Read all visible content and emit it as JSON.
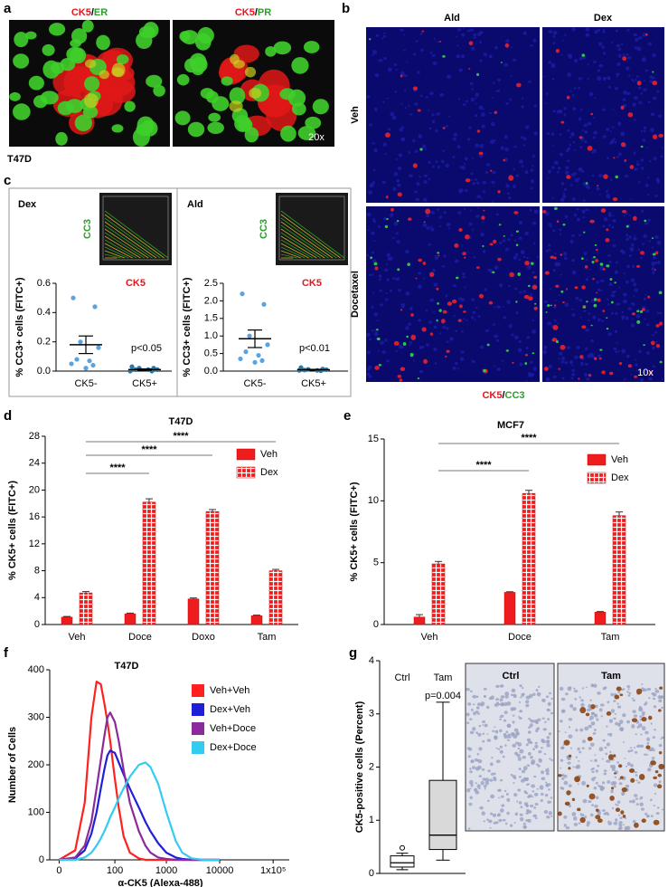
{
  "panel_letters": [
    "a",
    "b",
    "c",
    "d",
    "e",
    "f",
    "g"
  ],
  "panel_a": {
    "titles": [
      [
        "CK5",
        "/",
        "ER"
      ],
      [
        "CK5",
        "/",
        "PR"
      ]
    ],
    "magnification": "20x",
    "cell_line": "T47D"
  },
  "panel_b": {
    "columns": [
      "Ald",
      "Dex"
    ],
    "rows": [
      "Veh",
      "Docetaxel"
    ],
    "magnification": "10x",
    "stain": [
      "CK5",
      "/",
      "CC3"
    ]
  },
  "panel_g": {
    "image_labels": [
      "Ctrl",
      "Tam"
    ]
  },
  "chart_data": [
    {
      "type": "dot",
      "title": "Dex",
      "inset_xlabel": "CK5",
      "inset_ylabel": "CC3",
      "ylabel": "% CC3+ cells (FITC+)",
      "categories": [
        "CK5-",
        "CK5+"
      ],
      "colors": [
        "#5ba3e0",
        "#2a7aa8"
      ],
      "values": [
        [
          0.5,
          0.44,
          0.2,
          0.16,
          0.08,
          0.07,
          0.05,
          0.04,
          0.02
        ],
        [
          0.03,
          0.02,
          0.02,
          0.01,
          0.01,
          0.01,
          0.0,
          0.0
        ]
      ],
      "means": [
        0.18,
        0.01
      ],
      "errors": [
        0.06,
        0.005
      ],
      "ylim": [
        0,
        0.6
      ],
      "yticks": [
        {
          "value": 0,
          "label": "0.0"
        },
        0.2,
        0.4,
        0.6
      ],
      "annotation": "p<0.05"
    },
    {
      "type": "dot",
      "title": "Ald",
      "inset_xlabel": "CK5",
      "inset_ylabel": "CC3",
      "ylabel": "% CC3+ cells (FITC+)",
      "categories": [
        "CK5-",
        "CK5+"
      ],
      "colors": [
        "#5ba3e0",
        "#2a7aa8"
      ],
      "values": [
        [
          2.2,
          1.9,
          1.0,
          0.75,
          0.55,
          0.45,
          0.35,
          0.3,
          0.25
        ],
        [
          0.1,
          0.06,
          0.05,
          0.04,
          0.03,
          0.02,
          0.02,
          0.01
        ]
      ],
      "means": [
        0.92,
        0.04
      ],
      "errors": [
        0.25,
        0.01
      ],
      "ylim": [
        0,
        2.5
      ],
      "yticks": [
        {
          "value": 0,
          "label": "0.0"
        },
        0.5,
        {
          "value": 1,
          "label": "1.0"
        },
        1.5,
        {
          "value": 2,
          "label": "2.0"
        },
        2.5
      ],
      "annotation": "p<0.01"
    },
    {
      "type": "bar",
      "title": "T47D",
      "ylabel": "% CK5+ cells (FITC+)",
      "categories": [
        "Veh",
        "Doce",
        "Doxo",
        "Tam"
      ],
      "series": [
        {
          "name": "Veh",
          "color": "#ee1c1c",
          "pattern": "solid",
          "values": [
            1.1,
            1.6,
            3.8,
            1.3
          ],
          "errors": [
            0.1,
            0.1,
            0.15,
            0.1
          ]
        },
        {
          "name": "Dex",
          "color": "#ee1c1c",
          "pattern": "grid",
          "values": [
            4.7,
            18.2,
            16.8,
            8.0
          ],
          "errors": [
            0.2,
            0.5,
            0.3,
            0.2
          ]
        }
      ],
      "ylim": [
        0,
        28
      ],
      "yticks": [
        0,
        4,
        8,
        12,
        16,
        20,
        24,
        28
      ],
      "legend": "upper right",
      "significance": [
        "****",
        "****",
        "****"
      ]
    },
    {
      "type": "bar",
      "title": "MCF7",
      "ylabel": "% CK5+ cells (FITC+)",
      "categories": [
        "Veh",
        "Doce",
        "Tam"
      ],
      "series": [
        {
          "name": "Veh",
          "color": "#ee1c1c",
          "pattern": "solid",
          "values": [
            0.6,
            2.6,
            1.0
          ],
          "errors": [
            0.2,
            0.05,
            0.05
          ]
        },
        {
          "name": "Dex",
          "color": "#ee1c1c",
          "pattern": "grid",
          "values": [
            4.9,
            10.6,
            8.8
          ],
          "errors": [
            0.2,
            0.25,
            0.3
          ]
        }
      ],
      "ylim": [
        0,
        15
      ],
      "yticks": [
        0,
        5,
        10,
        15
      ],
      "legend": "upper right",
      "significance": [
        "****",
        "****"
      ]
    },
    {
      "type": "line",
      "title": "T47D",
      "xlabel": "α-CK5 (Alexa-488)",
      "ylabel": "Number of Cells",
      "xscale": "symlog",
      "linthresh": 10,
      "x": [
        0,
        10,
        20,
        30,
        40,
        50,
        60,
        70,
        80,
        100,
        120,
        150,
        200,
        300,
        400,
        500,
        700,
        1000,
        1500,
        2000,
        3000,
        5000,
        10000
      ],
      "series": [
        {
          "name": "Veh+Veh",
          "color": "#ff2020",
          "values": [
            0,
            20,
            120,
            300,
            375,
            370,
            330,
            290,
            250,
            170,
            110,
            50,
            15,
            3,
            0,
            0,
            0,
            0,
            0,
            0,
            0,
            0,
            0
          ]
        },
        {
          "name": "Dex+Veh",
          "color": "#1f1fd8",
          "values": [
            0,
            3,
            20,
            55,
            100,
            150,
            190,
            220,
            230,
            225,
            205,
            180,
            150,
            110,
            80,
            60,
            35,
            15,
            5,
            2,
            0,
            0,
            0
          ]
        },
        {
          "name": "Veh+Doce",
          "color": "#8b2a9a",
          "values": [
            0,
            5,
            30,
            80,
            150,
            210,
            260,
            300,
            310,
            290,
            250,
            190,
            120,
            60,
            30,
            15,
            5,
            2,
            0,
            0,
            0,
            0,
            0
          ]
        },
        {
          "name": "Dex+Doce",
          "color": "#33ccf0",
          "values": [
            0,
            0,
            5,
            15,
            30,
            45,
            60,
            75,
            90,
            110,
            130,
            150,
            175,
            200,
            205,
            195,
            160,
            100,
            40,
            15,
            3,
            0,
            0
          ]
        }
      ],
      "xlim": [
        -5,
        200000
      ],
      "xticks": [
        0,
        100,
        1000,
        10000,
        {
          "value": 100000,
          "label": "1x10⁵"
        }
      ],
      "ylim": [
        0,
        400
      ],
      "yticks": [
        0,
        100,
        200,
        300,
        400
      ],
      "legend": "upper right"
    },
    {
      "type": "box",
      "ylabel": "CK5-positive cells (Percent)",
      "categories": [
        "Ctrl",
        "Tam"
      ],
      "colors": [
        "#ffffff",
        "#d9d9d9"
      ],
      "boxes": [
        {
          "min": 0.07,
          "q1": 0.12,
          "median": 0.2,
          "q3": 0.33,
          "max": 0.38,
          "outliers": [
            0.48
          ]
        },
        {
          "min": 0.25,
          "q1": 0.45,
          "median": 0.72,
          "q3": 1.75,
          "max": 3.22,
          "outliers": []
        }
      ],
      "ylim": [
        0,
        4
      ],
      "yticks": [
        0,
        1,
        2,
        3,
        4
      ],
      "annotation": "p=0.004"
    }
  ]
}
